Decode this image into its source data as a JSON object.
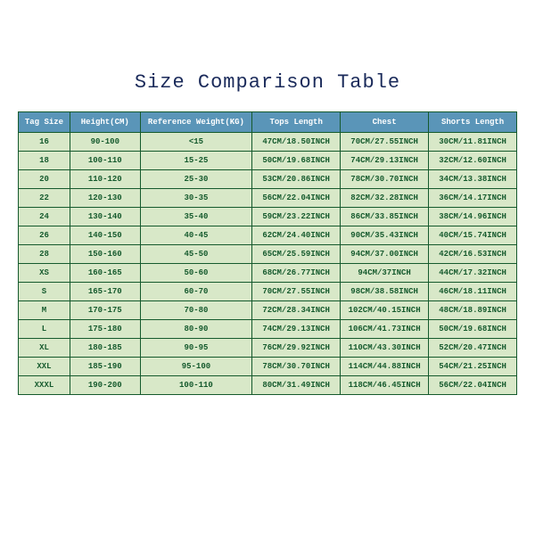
{
  "title": "Size Comparison Table",
  "columns": [
    "Tag Size",
    "Height(CM)",
    "Reference Weight(KG)",
    "Tops Length",
    "Chest",
    "Shorts Length"
  ],
  "rows": [
    [
      "16",
      "90-100",
      "<15",
      "47CM/18.50INCH",
      "70CM/27.55INCH",
      "30CM/11.81INCH"
    ],
    [
      "18",
      "100-110",
      "15-25",
      "50CM/19.68INCH",
      "74CM/29.13INCH",
      "32CM/12.60INCH"
    ],
    [
      "20",
      "110-120",
      "25-30",
      "53CM/20.86INCH",
      "78CM/30.70INCH",
      "34CM/13.38INCH"
    ],
    [
      "22",
      "120-130",
      "30-35",
      "56CM/22.04INCH",
      "82CM/32.28INCH",
      "36CM/14.17INCH"
    ],
    [
      "24",
      "130-140",
      "35-40",
      "59CM/23.22INCH",
      "86CM/33.85INCH",
      "38CM/14.96INCH"
    ],
    [
      "26",
      "140-150",
      "40-45",
      "62CM/24.40INCH",
      "90CM/35.43INCH",
      "40CM/15.74INCH"
    ],
    [
      "28",
      "150-160",
      "45-50",
      "65CM/25.59INCH",
      "94CM/37.00INCH",
      "42CM/16.53INCH"
    ],
    [
      "XS",
      "160-165",
      "50-60",
      "68CM/26.77INCH",
      "94CM/37INCH",
      "44CM/17.32INCH"
    ],
    [
      "S",
      "165-170",
      "60-70",
      "70CM/27.55INCH",
      "98CM/38.58INCH",
      "46CM/18.11INCH"
    ],
    [
      "M",
      "170-175",
      "70-80",
      "72CM/28.34INCH",
      "102CM/40.15INCH",
      "48CM/18.89INCH"
    ],
    [
      "L",
      "175-180",
      "80-90",
      "74CM/29.13INCH",
      "106CM/41.73INCH",
      "50CM/19.68INCH"
    ],
    [
      "XL",
      "180-185",
      "90-95",
      "76CM/29.92INCH",
      "110CM/43.30INCH",
      "52CM/20.47INCH"
    ],
    [
      "XXL",
      "185-190",
      "95-100",
      "78CM/30.70INCH",
      "114CM/44.88INCH",
      "54CM/21.25INCH"
    ],
    [
      "XXXL",
      "190-200",
      "100-110",
      "80CM/31.49INCH",
      "118CM/46.45INCH",
      "56CM/22.04INCH"
    ]
  ],
  "colors": {
    "title_color": "#1a2a5a",
    "header_bg": "#5a95b8",
    "header_text": "#ffffff",
    "cell_bg": "#d8e8c8",
    "cell_text": "#155a2d",
    "border": "#155a2d",
    "page_bg": "#ffffff"
  },
  "fonts": {
    "title_size": 22,
    "table_size": 9,
    "family": "Courier New"
  }
}
